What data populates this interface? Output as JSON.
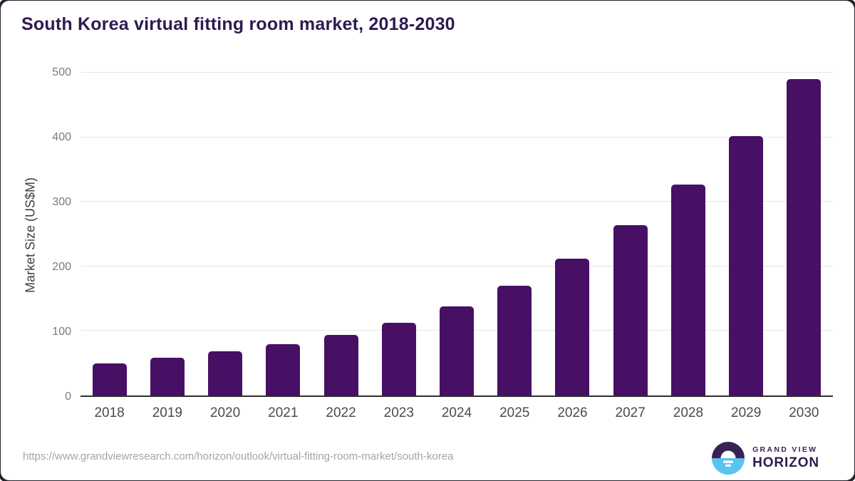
{
  "title": "South Korea virtual fitting room market, 2018-2030",
  "chart_data": {
    "type": "bar",
    "title": "South Korea virtual fitting room market, 2018-2030",
    "categories": [
      "2018",
      "2019",
      "2020",
      "2021",
      "2022",
      "2023",
      "2024",
      "2025",
      "2026",
      "2027",
      "2028",
      "2029",
      "2030"
    ],
    "values": [
      50,
      59,
      68,
      80,
      94,
      113,
      138,
      170,
      212,
      264,
      327,
      402,
      490
    ],
    "xlabel": "",
    "ylabel": "Market Size (US$M)",
    "ylim": [
      0,
      500
    ],
    "yticks": [
      0,
      100,
      200,
      300,
      400,
      500
    ],
    "grid": true,
    "legend": false,
    "bar_color": "#471064"
  },
  "footer": {
    "source_url": "https://www.grandviewresearch.com/horizon/outlook/virtual-fitting-room-market/south-korea",
    "logo": {
      "line1": "GRAND VIEW",
      "line2": "HORIZON",
      "icon": "horizon-sun-over-water"
    }
  },
  "colors": {
    "bar": "#471064",
    "title": "#2f1a52",
    "grid": "#e6e6e6",
    "axis_line": "#2e2e2e",
    "y_tick": "#7a7a7a",
    "x_tick": "#4b4b4b",
    "axis_title": "#414141",
    "url_text": "#a5a5a5",
    "logo_purple": "#3a2153",
    "logo_blue": "#5ac3ef",
    "frame": "#23232e"
  }
}
